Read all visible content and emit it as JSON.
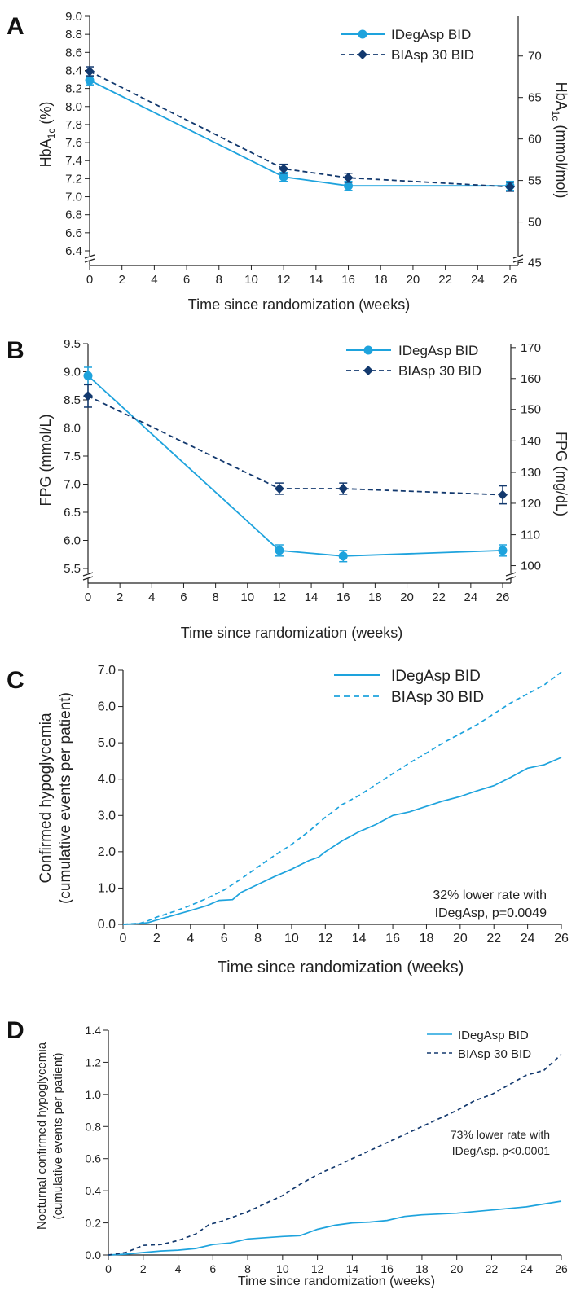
{
  "colors": {
    "idegasp": "#1ea3dd",
    "biasp": "#13396e",
    "axis": "#222222"
  },
  "chart_data": [
    {
      "panel": "A",
      "type": "line",
      "xlabel": "Time since randomization (weeks)",
      "ylabel_main": "HbA",
      "ylabel_sub": "1c",
      "ylabel_unit": " (%)",
      "ylabel_right_main": "HbA",
      "ylabel_right_sub": "1c",
      "ylabel_right_unit": " (mmol/mol)",
      "xlim": [
        0,
        26
      ],
      "xticks": [
        0,
        2,
        4,
        6,
        8,
        10,
        12,
        14,
        16,
        18,
        20,
        22,
        24,
        26
      ],
      "ylim": [
        6.4,
        9.0
      ],
      "yticks": [
        "6.4",
        "6.6",
        "6.8",
        "7.0",
        "7.2",
        "7.4",
        "7.6",
        "7.8",
        "8.0",
        "8.2",
        "8.4",
        "8.6",
        "8.8",
        "9.0"
      ],
      "right_ticks": [
        {
          "label": "45",
          "y": 6.27
        },
        {
          "label": "50",
          "y": 6.72
        },
        {
          "label": "55",
          "y": 7.18
        },
        {
          "label": "60",
          "y": 7.64
        },
        {
          "label": "65",
          "y": 8.1
        },
        {
          "label": "70",
          "y": 8.56
        }
      ],
      "series": [
        {
          "name": "IDegAsp BID",
          "marker": "circle",
          "dash": false,
          "x": [
            0,
            12,
            16,
            26
          ],
          "y": [
            8.29,
            7.22,
            7.12,
            7.12
          ],
          "err": [
            0.05,
            0.05,
            0.05,
            0.05
          ]
        },
        {
          "name": "BIAsp 30 BID",
          "marker": "diamond",
          "dash": true,
          "x": [
            0,
            12,
            16,
            26
          ],
          "y": [
            8.39,
            7.31,
            7.21,
            7.11
          ],
          "err": [
            0.05,
            0.05,
            0.05,
            0.05
          ]
        }
      ]
    },
    {
      "panel": "B",
      "type": "line",
      "xlabel": "Time since randomization (weeks)",
      "ylabel_main": "FPG (mmol/L)",
      "ylabel_sub": "",
      "ylabel_unit": "",
      "ylabel_right_main": "FPG (mg/dL)",
      "ylabel_right_sub": "",
      "ylabel_right_unit": "",
      "xlim": [
        0,
        26
      ],
      "xticks": [
        0,
        2,
        4,
        6,
        8,
        10,
        12,
        14,
        16,
        18,
        20,
        22,
        24,
        26
      ],
      "ylim": [
        5.5,
        9.5
      ],
      "yticks": [
        "5.5",
        "6.0",
        "6.5",
        "7.0",
        "7.5",
        "8.0",
        "8.5",
        "9.0",
        "9.5"
      ],
      "right_ticks": [
        {
          "label": "100",
          "y": 5.55
        },
        {
          "label": "110",
          "y": 6.1
        },
        {
          "label": "120",
          "y": 6.66
        },
        {
          "label": "130",
          "y": 7.21
        },
        {
          "label": "140",
          "y": 7.77
        },
        {
          "label": "150",
          "y": 8.33
        },
        {
          "label": "160",
          "y": 8.88
        },
        {
          "label": "170",
          "y": 9.43
        }
      ],
      "series": [
        {
          "name": "IDegAsp BID",
          "marker": "circle",
          "dash": false,
          "x": [
            0,
            12,
            16,
            26
          ],
          "y": [
            8.93,
            5.82,
            5.72,
            5.82
          ],
          "err": [
            0.15,
            0.1,
            0.1,
            0.1
          ]
        },
        {
          "name": "BIAsp 30 BID",
          "marker": "diamond",
          "dash": true,
          "x": [
            0,
            12,
            16,
            26
          ],
          "y": [
            8.57,
            6.92,
            6.92,
            6.81
          ],
          "err": [
            0.2,
            0.1,
            0.1,
            0.16
          ]
        }
      ]
    },
    {
      "panel": "C",
      "type": "line",
      "xlabel": "Time since randomization (weeks)",
      "ylabel_lines": [
        "Confirmed hypoglycemia",
        "(cumulative events per patient)"
      ],
      "xlim": [
        0,
        26
      ],
      "xticks": [
        0,
        2,
        4,
        6,
        8,
        10,
        12,
        14,
        16,
        18,
        20,
        22,
        24,
        26
      ],
      "ylim": [
        0,
        7
      ],
      "yticks": [
        "0.0",
        "1.0",
        "2.0",
        "3.0",
        "4.0",
        "5.0",
        "6.0",
        "7.0"
      ],
      "annotation": [
        "32% lower rate with",
        "IDegAsp, p=0.0049"
      ],
      "series": [
        {
          "name": "IDegAsp BID",
          "dash": false,
          "x": [
            0,
            1,
            1.5,
            2,
            3,
            4,
            5,
            5.7,
            6.5,
            7,
            8,
            9,
            10,
            11,
            11.6,
            12,
            13,
            14,
            15,
            16,
            17,
            18,
            19,
            20,
            21,
            22,
            23,
            24,
            25,
            26
          ],
          "y": [
            0,
            0.02,
            0.05,
            0.12,
            0.25,
            0.38,
            0.52,
            0.66,
            0.68,
            0.88,
            1.1,
            1.32,
            1.52,
            1.75,
            1.85,
            2.0,
            2.3,
            2.55,
            2.75,
            3.0,
            3.1,
            3.25,
            3.4,
            3.52,
            3.68,
            3.82,
            4.05,
            4.3,
            4.4,
            4.6
          ]
        },
        {
          "name": "BIAsp 30 BID",
          "dash": true,
          "x": [
            0,
            1,
            1.5,
            2,
            3,
            4,
            5,
            6,
            7,
            8,
            9,
            10,
            11,
            12,
            13,
            14,
            15,
            16,
            17,
            18,
            19,
            20,
            21,
            22,
            23,
            24,
            25,
            26
          ],
          "y": [
            0,
            0.03,
            0.1,
            0.2,
            0.35,
            0.52,
            0.72,
            0.95,
            1.25,
            1.58,
            1.9,
            2.2,
            2.55,
            2.95,
            3.3,
            3.55,
            3.85,
            4.15,
            4.45,
            4.72,
            5.0,
            5.25,
            5.5,
            5.8,
            6.1,
            6.35,
            6.6,
            6.95
          ]
        }
      ]
    },
    {
      "panel": "D",
      "type": "line",
      "xlabel": "Time since randomization (weeks)",
      "ylabel_lines": [
        "Nocturnal confirmed hypoglycemia",
        "(cumulative events per patient)"
      ],
      "xlim": [
        0,
        26
      ],
      "xticks": [
        0,
        2,
        4,
        6,
        8,
        10,
        12,
        14,
        16,
        18,
        20,
        22,
        24,
        26
      ],
      "ylim": [
        0,
        1.4
      ],
      "yticks": [
        "0.0",
        "0.2",
        "0.4",
        "0.6",
        "0.8",
        "1.0",
        "1.2",
        "1.4"
      ],
      "annotation": [
        "73% lower rate with",
        "IDegAsp. p<0.0001"
      ],
      "series": [
        {
          "name": "IDegAsp BID",
          "dash": false,
          "x": [
            0,
            1,
            2,
            3,
            4,
            5,
            6,
            7,
            8,
            10,
            11,
            12,
            13,
            14,
            15,
            16,
            17,
            18,
            20,
            22,
            24,
            26
          ],
          "y": [
            0,
            0.005,
            0.015,
            0.025,
            0.03,
            0.04,
            0.065,
            0.075,
            0.1,
            0.115,
            0.12,
            0.16,
            0.185,
            0.2,
            0.205,
            0.215,
            0.24,
            0.25,
            0.26,
            0.28,
            0.3,
            0.335
          ]
        },
        {
          "name": "BIAsp 30 BID",
          "dash": true,
          "x": [
            0,
            1,
            2,
            3,
            4,
            5,
            5.8,
            6.5,
            8,
            9,
            10,
            11,
            12,
            13,
            14,
            15,
            16,
            17,
            18,
            19,
            20,
            21,
            22,
            23,
            24,
            25,
            26
          ],
          "y": [
            0,
            0.015,
            0.06,
            0.065,
            0.09,
            0.13,
            0.19,
            0.21,
            0.27,
            0.32,
            0.37,
            0.44,
            0.5,
            0.55,
            0.6,
            0.65,
            0.7,
            0.75,
            0.8,
            0.85,
            0.9,
            0.96,
            1.0,
            1.06,
            1.12,
            1.15,
            1.25
          ]
        }
      ]
    }
  ]
}
